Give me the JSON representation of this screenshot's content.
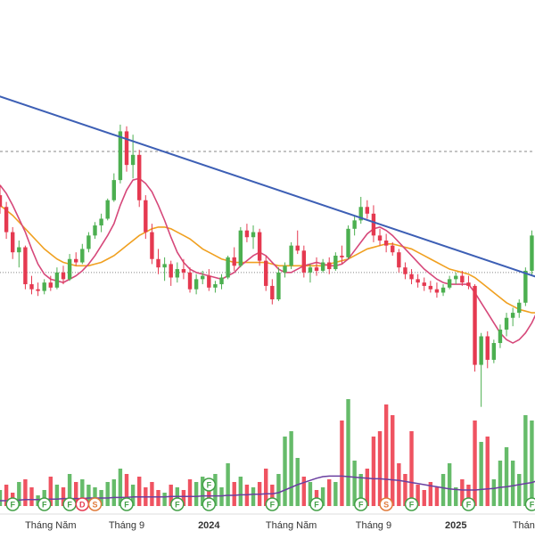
{
  "colors": {
    "up": "#4caf50",
    "down": "#e53950",
    "up_volume": "#66bb6a",
    "down_volume": "#ef5361",
    "trendline": "#3d5fb5",
    "ma_fast": "#d6487a",
    "ma_slow": "#f0a020",
    "volume_ma": "#6a3fa0",
    "reference_line": "#888888",
    "badge_f": "#43a047",
    "badge_d": "#e53950",
    "badge_s": "#e07a3a",
    "axis_text": "#333333"
  },
  "chart_data": {
    "type": "candlestick",
    "title": "",
    "xlabel": "",
    "ylabel": "",
    "x_tick_labels": [
      "Tháng Năm",
      "Tháng 9",
      "2024",
      "Tháng Năm",
      "Tháng 9",
      "2025",
      "Tháng Năm"
    ],
    "x_tick_slot": [
      8,
      20,
      33,
      46,
      59,
      72,
      85
    ],
    "candles": [
      [
        33.2,
        33.8,
        32.1,
        32.5
      ],
      [
        32.5,
        32.8,
        30.6,
        31.0
      ],
      [
        31.0,
        31.3,
        29.4,
        29.8
      ],
      [
        29.8,
        30.5,
        28.9,
        30.1
      ],
      [
        30.1,
        30.2,
        27.6,
        27.9
      ],
      [
        27.9,
        28.4,
        27.3,
        27.6
      ],
      [
        27.6,
        28.0,
        27.2,
        27.5
      ],
      [
        27.5,
        28.2,
        27.3,
        28.0
      ],
      [
        28.0,
        28.4,
        27.5,
        27.7
      ],
      [
        27.7,
        28.9,
        27.6,
        28.6
      ],
      [
        28.6,
        29.0,
        27.9,
        28.2
      ],
      [
        28.2,
        29.7,
        28.1,
        29.4
      ],
      [
        29.4,
        29.8,
        29.0,
        29.2
      ],
      [
        29.2,
        30.3,
        29.1,
        30.0
      ],
      [
        30.0,
        31.0,
        29.8,
        30.8
      ],
      [
        30.8,
        31.6,
        30.6,
        31.4
      ],
      [
        31.4,
        32.1,
        31.0,
        31.8
      ],
      [
        31.8,
        33.0,
        31.7,
        32.9
      ],
      [
        32.9,
        34.5,
        32.8,
        34.1
      ],
      [
        34.1,
        37.4,
        33.9,
        37.0
      ],
      [
        37.0,
        37.3,
        34.6,
        35.0
      ],
      [
        35.0,
        36.8,
        34.2,
        35.6
      ],
      [
        35.6,
        35.9,
        32.5,
        32.9
      ],
      [
        32.9,
        33.2,
        30.6,
        31.0
      ],
      [
        31.0,
        31.5,
        29.1,
        29.4
      ],
      [
        29.4,
        30.0,
        28.5,
        28.9
      ],
      [
        28.9,
        29.5,
        28.1,
        29.1
      ],
      [
        29.1,
        29.3,
        27.8,
        28.3
      ],
      [
        28.3,
        29.2,
        28.0,
        28.8
      ],
      [
        28.8,
        29.4,
        28.2,
        28.6
      ],
      [
        28.6,
        28.9,
        27.4,
        27.6
      ],
      [
        27.6,
        28.5,
        27.3,
        28.2
      ],
      [
        28.2,
        28.7,
        27.9,
        28.4
      ],
      [
        28.4,
        28.8,
        27.5,
        27.7
      ],
      [
        27.7,
        28.1,
        27.4,
        27.9
      ],
      [
        27.9,
        28.5,
        27.6,
        28.3
      ],
      [
        28.3,
        29.6,
        28.2,
        29.5
      ],
      [
        29.5,
        30.1,
        28.7,
        29.0
      ],
      [
        29.0,
        31.3,
        28.9,
        31.1
      ],
      [
        31.1,
        31.5,
        30.4,
        30.7
      ],
      [
        30.7,
        31.4,
        30.0,
        31.0
      ],
      [
        31.0,
        31.2,
        29.0,
        29.3
      ],
      [
        29.3,
        29.6,
        27.5,
        27.8
      ],
      [
        27.8,
        28.2,
        26.7,
        27.0
      ],
      [
        27.0,
        28.9,
        26.9,
        28.6
      ],
      [
        28.6,
        29.2,
        28.3,
        29.0
      ],
      [
        29.0,
        30.4,
        28.8,
        30.2
      ],
      [
        30.2,
        31.1,
        29.7,
        29.9
      ],
      [
        29.9,
        30.2,
        28.3,
        28.6
      ],
      [
        28.6,
        29.1,
        28.0,
        28.9
      ],
      [
        28.9,
        29.5,
        28.4,
        28.7
      ],
      [
        28.7,
        29.4,
        28.6,
        29.2
      ],
      [
        29.2,
        29.5,
        28.5,
        28.8
      ],
      [
        28.8,
        29.8,
        28.7,
        29.6
      ],
      [
        29.6,
        30.2,
        29.1,
        29.5
      ],
      [
        29.5,
        31.4,
        29.4,
        31.2
      ],
      [
        31.2,
        32.0,
        30.8,
        31.7
      ],
      [
        31.7,
        33.1,
        31.5,
        32.5
      ],
      [
        32.5,
        32.9,
        31.8,
        32.1
      ],
      [
        32.1,
        32.6,
        30.4,
        30.8
      ],
      [
        30.8,
        31.2,
        30.2,
        30.5
      ],
      [
        30.5,
        30.9,
        29.8,
        30.2
      ],
      [
        30.2,
        30.4,
        29.6,
        29.8
      ],
      [
        29.8,
        30.0,
        28.6,
        28.9
      ],
      [
        28.9,
        29.2,
        28.2,
        28.5
      ],
      [
        28.5,
        28.8,
        27.9,
        28.2
      ],
      [
        28.2,
        28.5,
        27.7,
        28.0
      ],
      [
        28.0,
        28.3,
        27.5,
        27.8
      ],
      [
        27.8,
        28.1,
        27.4,
        27.6
      ],
      [
        27.6,
        28.0,
        27.1,
        27.4
      ],
      [
        27.4,
        27.9,
        27.2,
        27.7
      ],
      [
        27.7,
        28.4,
        27.6,
        28.2
      ],
      [
        28.2,
        28.6,
        27.9,
        28.4
      ],
      [
        28.4,
        28.7,
        27.8,
        28.0
      ],
      [
        28.0,
        28.4,
        27.6,
        27.8
      ],
      [
        27.8,
        27.9,
        22.7,
        23.1
      ],
      [
        23.1,
        25.0,
        20.6,
        24.8
      ],
      [
        24.8,
        25.1,
        22.9,
        23.4
      ],
      [
        23.4,
        24.6,
        23.2,
        24.4
      ],
      [
        24.4,
        25.5,
        24.1,
        25.2
      ],
      [
        25.2,
        26.2,
        24.8,
        25.9
      ],
      [
        25.9,
        26.5,
        25.4,
        26.2
      ],
      [
        26.2,
        27.0,
        25.9,
        26.8
      ],
      [
        26.8,
        28.9,
        26.6,
        28.7
      ],
      [
        28.7,
        31.1,
        28.4,
        30.8
      ]
    ],
    "ma_fast": [
      33.8,
      33.3,
      32.6,
      31.8,
      31.0,
      30.0,
      29.1,
      28.5,
      28.2,
      28.1,
      28.0,
      28.2,
      28.4,
      28.7,
      29.1,
      29.6,
      30.2,
      30.8,
      31.5,
      32.6,
      33.5,
      34.1,
      34.2,
      33.9,
      33.4,
      32.6,
      31.7,
      30.7,
      29.8,
      29.2,
      28.8,
      28.6,
      28.5,
      28.4,
      28.3,
      28.2,
      28.4,
      28.6,
      29.0,
      29.3,
      29.6,
      29.8,
      29.6,
      29.2,
      28.8,
      28.6,
      28.6,
      28.8,
      29.0,
      29.1,
      29.2,
      29.1,
      29.0,
      29.0,
      29.1,
      29.4,
      29.9,
      30.4,
      30.9,
      31.2,
      31.3,
      31.1,
      30.8,
      30.4,
      30.0,
      29.6,
      29.2,
      28.8,
      28.5,
      28.2,
      28.0,
      27.9,
      27.9,
      27.9,
      27.9,
      27.4,
      26.8,
      26.2,
      25.6,
      25.0,
      24.6,
      24.4,
      24.6,
      25.0,
      25.6,
      26.4
    ],
    "ma_slow": [
      32.6,
      32.3,
      32.0,
      31.6,
      31.2,
      30.8,
      30.4,
      30.0,
      29.7,
      29.4,
      29.2,
      29.1,
      29.0,
      29.0,
      29.0,
      29.1,
      29.2,
      29.4,
      29.6,
      29.9,
      30.2,
      30.5,
      30.8,
      31.0,
      31.2,
      31.3,
      31.3,
      31.2,
      31.0,
      30.8,
      30.6,
      30.3,
      30.0,
      29.8,
      29.6,
      29.4,
      29.3,
      29.2,
      29.2,
      29.2,
      29.2,
      29.2,
      29.2,
      29.1,
      29.0,
      29.0,
      29.0,
      29.0,
      29.0,
      29.0,
      29.0,
      29.0,
      29.1,
      29.2,
      29.3,
      29.4,
      29.6,
      29.8,
      30.0,
      30.1,
      30.2,
      30.3,
      30.3,
      30.2,
      30.1,
      30.0,
      29.8,
      29.6,
      29.4,
      29.2,
      29.0,
      28.8,
      28.7,
      28.6,
      28.5,
      28.3,
      28.0,
      27.7,
      27.4,
      27.1,
      26.8,
      26.6,
      26.4,
      26.3,
      26.2,
      26.2
    ],
    "volume": [
      30,
      40,
      25,
      45,
      50,
      35,
      20,
      30,
      55,
      40,
      35,
      60,
      45,
      50,
      40,
      35,
      30,
      45,
      50,
      70,
      60,
      40,
      55,
      35,
      45,
      30,
      25,
      40,
      35,
      30,
      50,
      45,
      55,
      40,
      60,
      35,
      80,
      45,
      55,
      40,
      35,
      45,
      70,
      40,
      60,
      130,
      140,
      90,
      55,
      45,
      30,
      35,
      50,
      45,
      160,
      200,
      85,
      60,
      70,
      130,
      140,
      190,
      170,
      80,
      60,
      140,
      40,
      30,
      45,
      35,
      60,
      80,
      35,
      50,
      40,
      160,
      120,
      130,
      50,
      85,
      110,
      85,
      60,
      170,
      160,
      220
    ],
    "volume_up": [
      true,
      false,
      false,
      true,
      false,
      false,
      true,
      true,
      false,
      true,
      false,
      true,
      false,
      true,
      true,
      true,
      true,
      true,
      true,
      true,
      false,
      true,
      false,
      false,
      false,
      false,
      true,
      false,
      true,
      false,
      false,
      true,
      true,
      false,
      true,
      true,
      true,
      false,
      true,
      false,
      true,
      false,
      false,
      false,
      true,
      true,
      true,
      true,
      false,
      true,
      false,
      true,
      false,
      true,
      false,
      true,
      true,
      true,
      false,
      false,
      false,
      false,
      false,
      false,
      false,
      false,
      false,
      false,
      false,
      false,
      true,
      true,
      true,
      false,
      false,
      false,
      true,
      false,
      true,
      true,
      true,
      true,
      true,
      true,
      true,
      true
    ],
    "volume_ma": [
      10,
      10,
      11,
      11,
      12,
      12,
      12,
      13,
      13,
      13,
      14,
      14,
      14,
      14,
      15,
      15,
      15,
      15,
      16,
      16,
      16,
      17,
      17,
      17,
      17,
      17,
      17,
      18,
      18,
      18,
      18,
      18,
      19,
      19,
      19,
      19,
      20,
      20,
      21,
      21,
      22,
      22,
      23,
      23,
      25,
      30,
      35,
      40,
      44,
      48,
      52,
      55,
      56,
      56,
      56,
      55,
      54,
      53,
      52,
      51,
      51,
      50,
      49,
      48,
      46,
      44,
      42,
      40,
      38,
      36,
      34,
      32,
      31,
      30,
      30,
      30,
      31,
      32,
      33,
      35,
      36,
      38,
      40,
      42,
      44,
      48
    ],
    "trendline": {
      "from": [
        -1,
        39.2
      ],
      "to": [
        85,
        28.3
      ]
    },
    "reference_lines": [
      {
        "value": 35.8,
        "style": "dashed"
      },
      {
        "value": 28.6,
        "style": "dotted"
      }
    ],
    "event_markers": [
      {
        "slot": 2,
        "label": "F"
      },
      {
        "slot": 7,
        "label": "F"
      },
      {
        "slot": 11,
        "label": "F"
      },
      {
        "slot": 13,
        "label": "D"
      },
      {
        "slot": 15,
        "label": "S"
      },
      {
        "slot": 20,
        "label": "F"
      },
      {
        "slot": 28,
        "label": "F"
      },
      {
        "slot": 33,
        "label": "F"
      },
      {
        "slot": 43,
        "label": "F"
      },
      {
        "slot": 50,
        "label": "F"
      },
      {
        "slot": 57,
        "label": "F"
      },
      {
        "slot": 61,
        "label": "S"
      },
      {
        "slot": 65,
        "label": "F"
      },
      {
        "slot": 74,
        "label": "F"
      },
      {
        "slot": 84,
        "label": "F"
      }
    ],
    "event_markers_extra": [
      {
        "slot": 33,
        "label": "F",
        "row": "upper"
      }
    ]
  }
}
